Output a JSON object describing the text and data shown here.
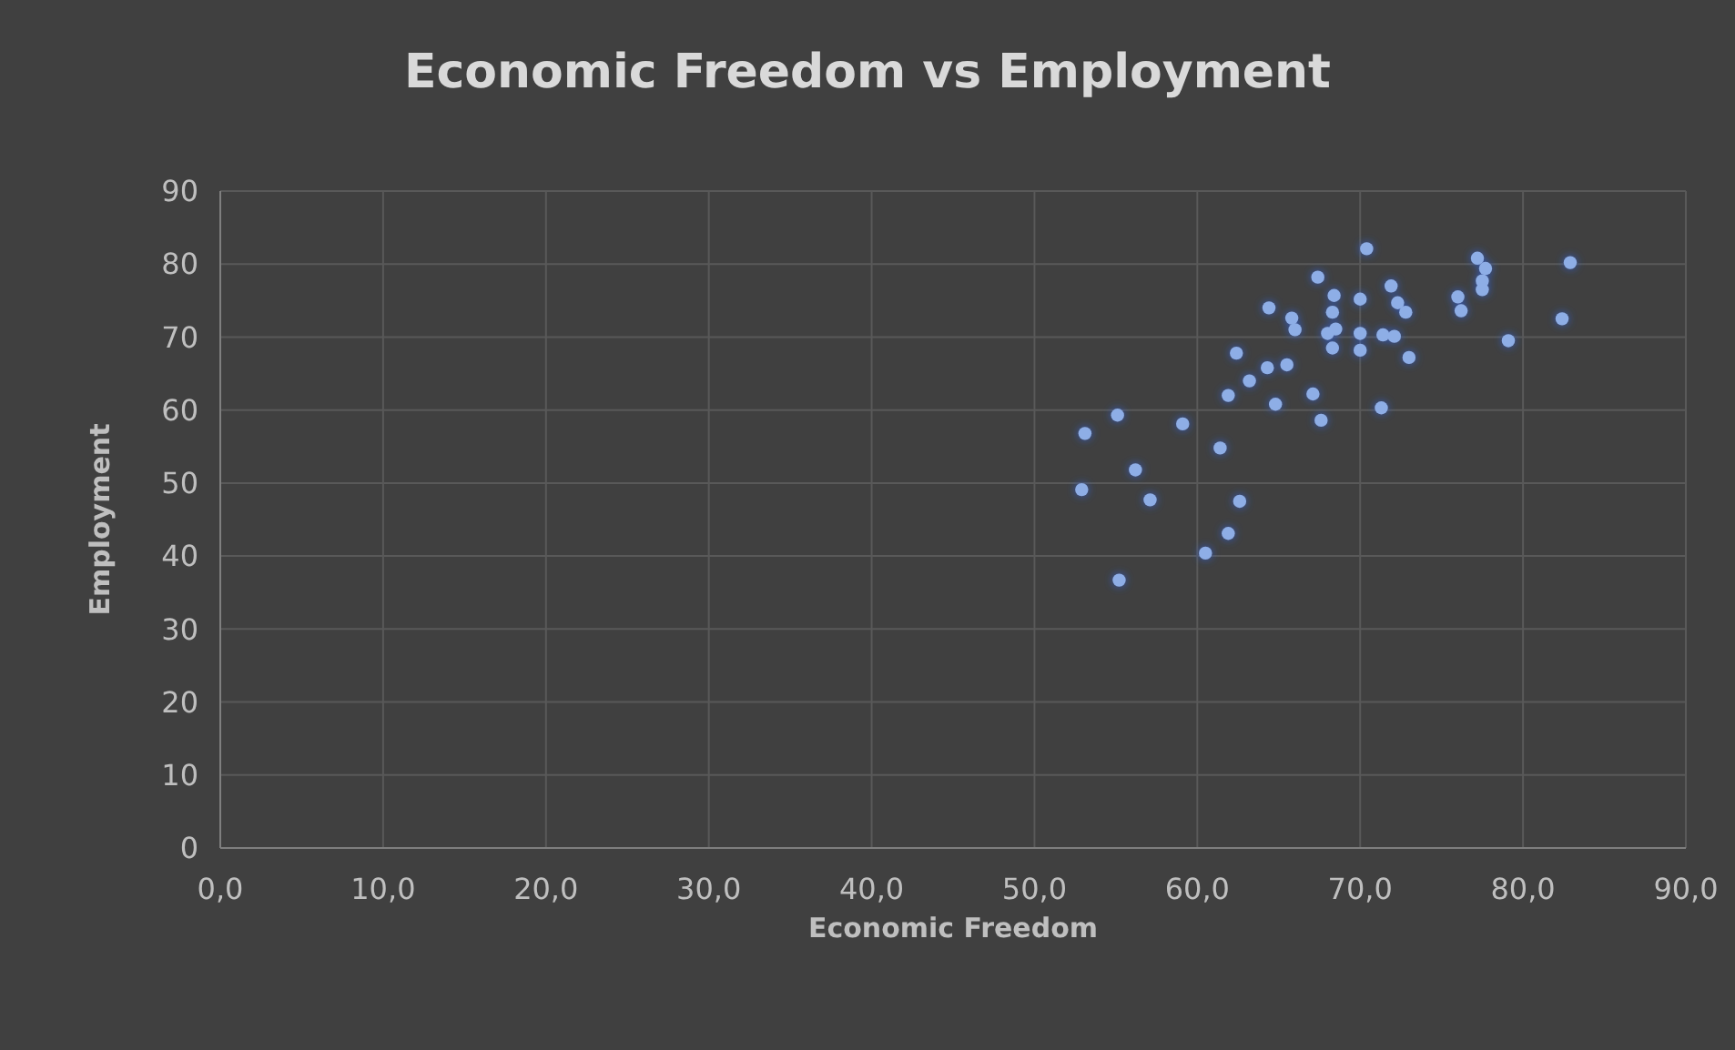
{
  "chart_data": {
    "type": "scatter",
    "title": "Economic Freedom vs Employment",
    "xlabel": "Economic Freedom",
    "ylabel": "Employment",
    "xlim": [
      0,
      90
    ],
    "xticks": [
      {
        "value": 0,
        "label": "0,0"
      },
      {
        "value": 10,
        "label": "10,0"
      },
      {
        "value": 20,
        "label": "20,0"
      },
      {
        "value": 30,
        "label": "30,0"
      },
      {
        "value": 40,
        "label": "40,0"
      },
      {
        "value": 50,
        "label": "50,0"
      },
      {
        "value": 60,
        "label": "60,0"
      },
      {
        "value": 70,
        "label": "70,0"
      },
      {
        "value": 80,
        "label": "80,0"
      },
      {
        "value": 90,
        "label": "90,0"
      }
    ],
    "ylim": [
      0,
      90
    ],
    "yticks": [
      0,
      10,
      20,
      30,
      40,
      50,
      60,
      70,
      80,
      90
    ],
    "grid": true,
    "marker": "circle",
    "series": [
      {
        "color": "#8eaee6",
        "x": [
          70.4,
          67.4,
          68.4,
          70.0,
          71.9,
          72.3,
          64.4,
          65.8,
          66.0,
          68.3,
          68.5,
          68.0,
          70.0,
          71.4,
          72.1,
          68.3,
          70.0,
          62.4,
          64.3,
          65.5,
          63.2,
          61.9,
          67.1,
          64.8,
          67.6,
          71.3,
          55.1,
          53.1,
          59.1,
          61.4,
          56.2,
          52.9,
          57.1,
          62.6,
          61.9,
          60.5,
          55.2,
          77.2,
          77.7,
          77.5,
          77.5,
          82.9,
          72.8,
          76.0,
          76.2,
          82.4,
          79.1,
          73.0
        ],
        "values": [
          82.1,
          78.2,
          75.7,
          75.2,
          77.0,
          74.7,
          74.0,
          72.6,
          71.0,
          73.4,
          71.1,
          70.5,
          70.5,
          70.3,
          70.1,
          68.5,
          68.2,
          67.8,
          65.8,
          66.2,
          64.0,
          62.0,
          62.2,
          60.8,
          58.6,
          60.3,
          59.3,
          56.8,
          58.1,
          54.8,
          51.8,
          49.1,
          47.7,
          47.5,
          43.1,
          40.4,
          36.7,
          80.8,
          79.4,
          77.7,
          76.5,
          80.2,
          73.4,
          75.5,
          73.6,
          72.5,
          69.5,
          67.2
        ]
      }
    ]
  }
}
